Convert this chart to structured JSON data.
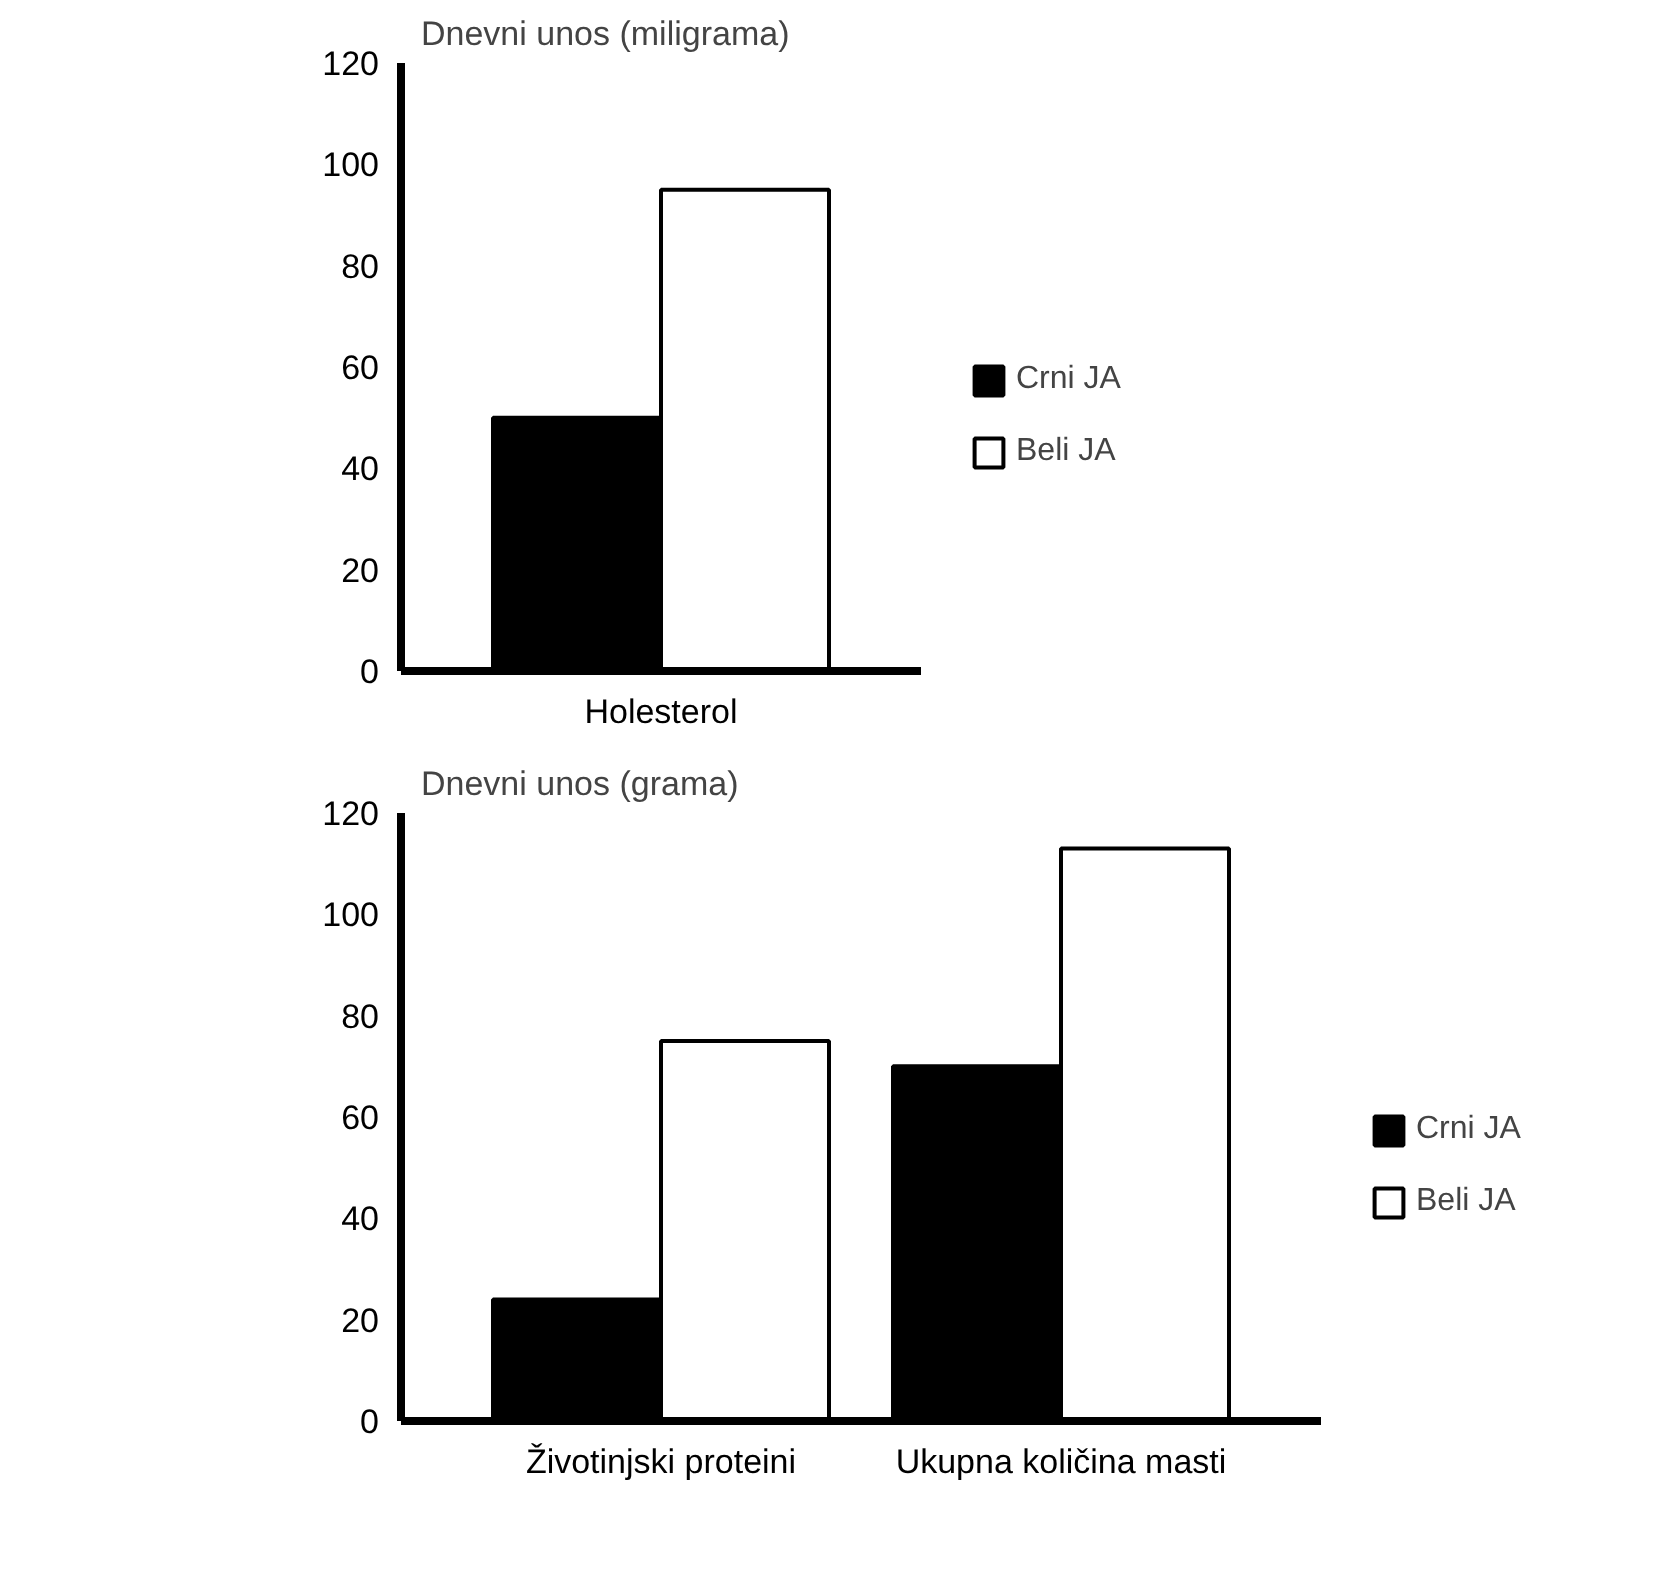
{
  "chart_data": [
    {
      "type": "bar",
      "ylabel": "Dnevni unos (miligrama)",
      "categories": [
        "Holesterol"
      ],
      "series": [
        {
          "name": "Crni JA",
          "color": "#000000",
          "values": [
            50
          ]
        },
        {
          "name": "Beli JA",
          "color": "#ffffff",
          "values": [
            95
          ]
        }
      ],
      "ylim": [
        0,
        120
      ],
      "yticks": [
        0,
        20,
        40,
        60,
        80,
        100,
        120
      ],
      "grid": false,
      "legend": "right"
    },
    {
      "type": "bar",
      "ylabel": "Dnevni unos (grama)",
      "categories": [
        "Životinjski proteini",
        "Ukupna količina masti"
      ],
      "series": [
        {
          "name": "Crni JA",
          "color": "#000000",
          "values": [
            24,
            70
          ]
        },
        {
          "name": "Beli JA",
          "color": "#ffffff",
          "values": [
            75,
            113
          ]
        }
      ],
      "ylim": [
        0,
        120
      ],
      "yticks": [
        0,
        20,
        40,
        60,
        80,
        100,
        120
      ],
      "grid": false,
      "legend": "right"
    }
  ]
}
